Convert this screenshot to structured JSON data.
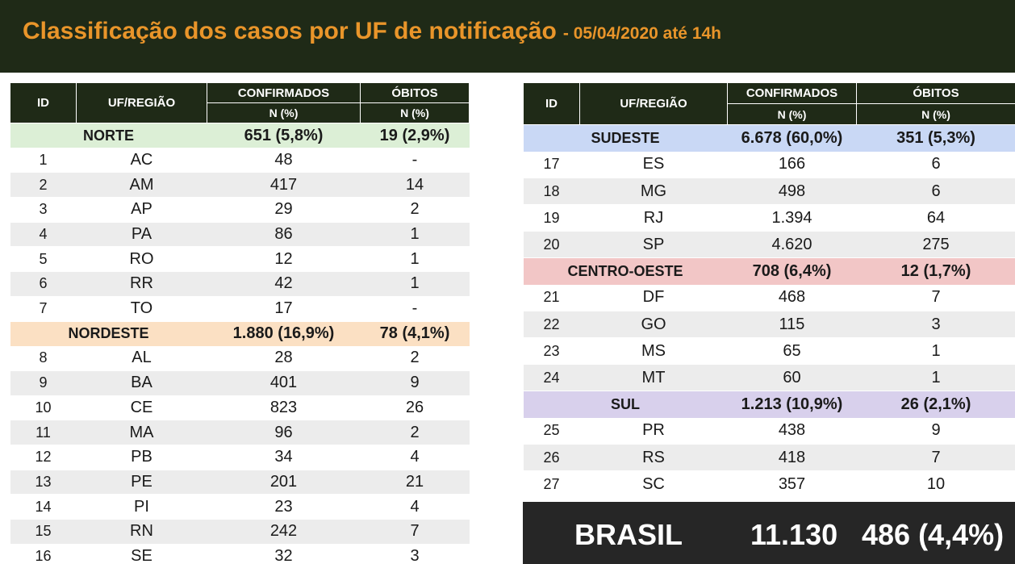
{
  "header": {
    "title": "Classificação dos casos por UF de notificação",
    "subtitle": "- 05/04/2020 até 14h"
  },
  "columns": {
    "id": "ID",
    "uf": "UF/REGIÃO",
    "confirmed": "CONFIRMADOS",
    "deaths": "ÓBITOS",
    "unit": "N (%)"
  },
  "left_table": [
    {
      "type": "region",
      "name": "NORTE",
      "confirmed": "651 (5,8%)",
      "deaths": "19 (2,9%)",
      "color": "#dcefd6"
    },
    {
      "type": "row",
      "id": "1",
      "uf": "AC",
      "confirmed": "48",
      "deaths": "-"
    },
    {
      "type": "row",
      "id": "2",
      "uf": "AM",
      "confirmed": "417",
      "deaths": "14"
    },
    {
      "type": "row",
      "id": "3",
      "uf": "AP",
      "confirmed": "29",
      "deaths": "2"
    },
    {
      "type": "row",
      "id": "4",
      "uf": "PA",
      "confirmed": "86",
      "deaths": "1"
    },
    {
      "type": "row",
      "id": "5",
      "uf": "RO",
      "confirmed": "12",
      "deaths": "1"
    },
    {
      "type": "row",
      "id": "6",
      "uf": "RR",
      "confirmed": "42",
      "deaths": "1"
    },
    {
      "type": "row",
      "id": "7",
      "uf": "TO",
      "confirmed": "17",
      "deaths": "-"
    },
    {
      "type": "region",
      "name": "NORDESTE",
      "confirmed": "1.880 (16,9%)",
      "deaths": "78 (4,1%)",
      "color": "#fbe0c3"
    },
    {
      "type": "row",
      "id": "8",
      "uf": "AL",
      "confirmed": "28",
      "deaths": "2"
    },
    {
      "type": "row",
      "id": "9",
      "uf": "BA",
      "confirmed": "401",
      "deaths": "9"
    },
    {
      "type": "row",
      "id": "10",
      "uf": "CE",
      "confirmed": "823",
      "deaths": "26"
    },
    {
      "type": "row",
      "id": "11",
      "uf": "MA",
      "confirmed": "96",
      "deaths": "2"
    },
    {
      "type": "row",
      "id": "12",
      "uf": "PB",
      "confirmed": "34",
      "deaths": "4"
    },
    {
      "type": "row",
      "id": "13",
      "uf": "PE",
      "confirmed": "201",
      "deaths": "21"
    },
    {
      "type": "row",
      "id": "14",
      "uf": "PI",
      "confirmed": "23",
      "deaths": "4"
    },
    {
      "type": "row",
      "id": "15",
      "uf": "RN",
      "confirmed": "242",
      "deaths": "7"
    },
    {
      "type": "row",
      "id": "16",
      "uf": "SE",
      "confirmed": "32",
      "deaths": "3"
    }
  ],
  "right_table": [
    {
      "type": "region",
      "name": "SUDESTE",
      "confirmed": "6.678 (60,0%)",
      "deaths": "351 (5,3%)",
      "color": "#c9d8f5"
    },
    {
      "type": "row",
      "id": "17",
      "uf": "ES",
      "confirmed": "166",
      "deaths": "6"
    },
    {
      "type": "row",
      "id": "18",
      "uf": "MG",
      "confirmed": "498",
      "deaths": "6"
    },
    {
      "type": "row",
      "id": "19",
      "uf": "RJ",
      "confirmed": "1.394",
      "deaths": "64"
    },
    {
      "type": "row",
      "id": "20",
      "uf": "SP",
      "confirmed": "4.620",
      "deaths": "275"
    },
    {
      "type": "region",
      "name": "CENTRO-OESTE",
      "confirmed": "708 (6,4%)",
      "deaths": "12 (1,7%)",
      "color": "#f2c6c6"
    },
    {
      "type": "row",
      "id": "21",
      "uf": "DF",
      "confirmed": "468",
      "deaths": "7"
    },
    {
      "type": "row",
      "id": "22",
      "uf": "GO",
      "confirmed": "115",
      "deaths": "3"
    },
    {
      "type": "row",
      "id": "23",
      "uf": "MS",
      "confirmed": "65",
      "deaths": "1"
    },
    {
      "type": "row",
      "id": "24",
      "uf": "MT",
      "confirmed": "60",
      "deaths": "1"
    },
    {
      "type": "region",
      "name": "SUL",
      "confirmed": "1.213 (10,9%)",
      "deaths": "26 (2,1%)",
      "color": "#d8d0ec"
    },
    {
      "type": "row",
      "id": "25",
      "uf": "PR",
      "confirmed": "438",
      "deaths": "9"
    },
    {
      "type": "row",
      "id": "26",
      "uf": "RS",
      "confirmed": "418",
      "deaths": "7"
    },
    {
      "type": "row",
      "id": "27",
      "uf": "SC",
      "confirmed": "357",
      "deaths": "10"
    }
  ],
  "total": {
    "label": "BRASIL",
    "confirmed": "11.130",
    "deaths": "486 (4,4%)"
  }
}
